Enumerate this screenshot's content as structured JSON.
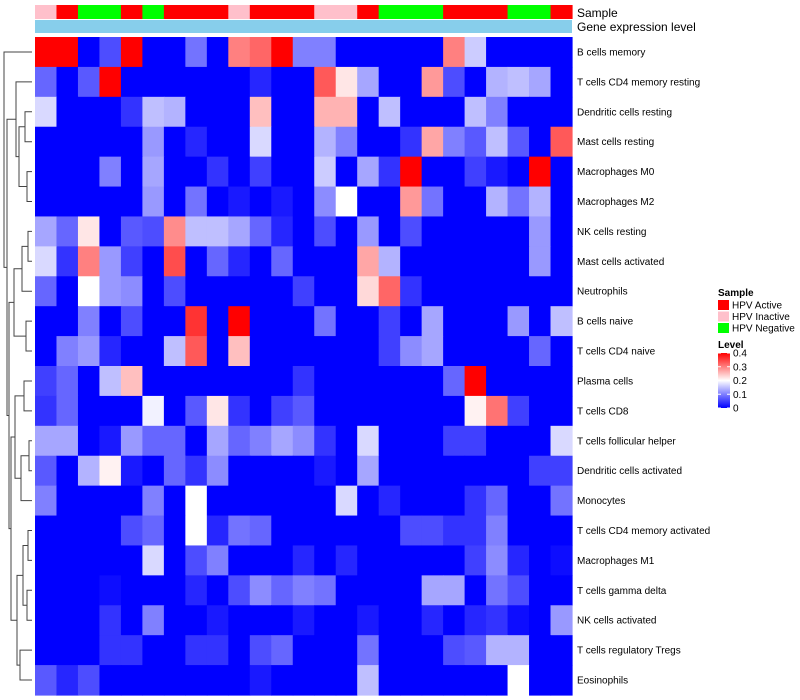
{
  "chart_data": {
    "type": "heatmap",
    "title": "",
    "annotation_labels": {
      "sample": "Sample",
      "gene_level": "Gene expression level"
    },
    "rows": [
      "B cells memory",
      "T cells CD4 memory resting",
      "Dendritic cells resting",
      "Mast cells resting",
      "Macrophages M0",
      "Macrophages M2",
      "NK cells resting",
      "Mast cells activated",
      "Neutrophils",
      "B cells naive",
      "T cells CD4 naive",
      "Plasma cells",
      "T cells CD8",
      "T cells follicular helper",
      "Dendritic cells activated",
      "Monocytes",
      "T cells CD4 memory activated",
      "Macrophages M1",
      "T cells gamma delta",
      "NK cells activated",
      "T cells regulatory  Tregs",
      "Eosinophils"
    ],
    "sample_groups": [
      "HPV Inactive",
      "HPV Active",
      "HPV Negative",
      "HPV Negative",
      "HPV Active",
      "HPV Negative",
      "HPV Active",
      "HPV Active",
      "HPV Active",
      "HPV Inactive",
      "HPV Active",
      "HPV Active",
      "HPV Active",
      "HPV Inactive",
      "HPV Inactive",
      "HPV Active",
      "HPV Negative",
      "HPV Negative",
      "HPV Negative",
      "HPV Active",
      "HPV Active",
      "HPV Active",
      "HPV Negative",
      "HPV Negative",
      "HPV Active"
    ],
    "values": [
      [
        0.4,
        0.4,
        0,
        0.06,
        0.4,
        0,
        0,
        0.09,
        0,
        0.3,
        0.32,
        0.4,
        0.1,
        0.1,
        0,
        0,
        0,
        0,
        0,
        0.3,
        0.16,
        0,
        0,
        0,
        0
      ],
      [
        0.08,
        0,
        0.07,
        0.4,
        0,
        0,
        0,
        0,
        0,
        0,
        0.03,
        0,
        0,
        0.33,
        0.22,
        0.13,
        0,
        0,
        0.28,
        0.06,
        0,
        0.14,
        0.15,
        0.13,
        0
      ],
      [
        0.17,
        0,
        0,
        0,
        0.04,
        0.15,
        0.14,
        0,
        0,
        0,
        0.25,
        0,
        0,
        0.26,
        0.26,
        0,
        0.15,
        0,
        0,
        0,
        0.15,
        0.1,
        0,
        0,
        0
      ],
      [
        0,
        0,
        0,
        0,
        0,
        0.12,
        0,
        0.03,
        0,
        0,
        0.17,
        0,
        0,
        0.14,
        0.1,
        0,
        0,
        0.04,
        0.27,
        0.1,
        0.07,
        0.15,
        0.07,
        0,
        0.33
      ],
      [
        0,
        0,
        0,
        0.1,
        0,
        0.13,
        0,
        0,
        0.04,
        0,
        0.05,
        0,
        0,
        0.16,
        0,
        0.13,
        0.04,
        0.4,
        0,
        0,
        0.05,
        0.02,
        0,
        0.4,
        0
      ],
      [
        0,
        0,
        0,
        0,
        0,
        0.12,
        0,
        0.09,
        0,
        0.02,
        0,
        0.02,
        0,
        0.11,
        0.2,
        0,
        0,
        0.28,
        0.09,
        0,
        0,
        0.14,
        0.09,
        0.14,
        0
      ],
      [
        0.13,
        0.08,
        0.22,
        0,
        0.07,
        0.06,
        0.29,
        0.15,
        0.15,
        0.13,
        0.08,
        0.03,
        0,
        0.06,
        0,
        0.12,
        0,
        0.06,
        0,
        0,
        0,
        0,
        0,
        0.12,
        0
      ],
      [
        0.17,
        0.04,
        0.3,
        0.12,
        0.05,
        0,
        0.34,
        0,
        0.08,
        0.03,
        0,
        0.08,
        0,
        0,
        0,
        0.27,
        0.14,
        0,
        0,
        0,
        0,
        0,
        0,
        0.12,
        0
      ],
      [
        0.08,
        0,
        0.2,
        0.12,
        0.11,
        0,
        0.06,
        0,
        0,
        0,
        0,
        0,
        0.05,
        0,
        0,
        0.23,
        0.32,
        0.04,
        0,
        0,
        0,
        0,
        0,
        0,
        0
      ],
      [
        0,
        0,
        0.1,
        0,
        0.06,
        0,
        0,
        0.36,
        0,
        0.4,
        0,
        0,
        0,
        0.09,
        0,
        0,
        0.05,
        0,
        0.13,
        0,
        0,
        0,
        0.12,
        0,
        0.15
      ],
      [
        0,
        0.1,
        0.12,
        0.03,
        0,
        0,
        0.15,
        0.33,
        0,
        0.25,
        0,
        0,
        0,
        0,
        0,
        0,
        0.05,
        0.11,
        0.13,
        0,
        0,
        0,
        0,
        0.08,
        0
      ],
      [
        0.05,
        0.08,
        0,
        0.15,
        0.25,
        0,
        0,
        0,
        0,
        0,
        0,
        0,
        0.04,
        0,
        0,
        0,
        0,
        0,
        0,
        0.08,
        0.4,
        0,
        0,
        0,
        0
      ],
      [
        0.04,
        0.08,
        0,
        0,
        0,
        0.19,
        0,
        0.07,
        0.22,
        0.04,
        0,
        0.05,
        0.07,
        0,
        0,
        0,
        0,
        0,
        0,
        0,
        0.21,
        0.31,
        0.05,
        0,
        0
      ],
      [
        0.13,
        0.13,
        0,
        0.02,
        0.12,
        0.08,
        0.08,
        0,
        0.13,
        0.08,
        0.1,
        0.13,
        0.11,
        0.04,
        0,
        0.17,
        0,
        0,
        0,
        0.05,
        0.05,
        0,
        0,
        0,
        0.17
      ],
      [
        0.07,
        0,
        0.14,
        0.21,
        0.02,
        0,
        0.08,
        0.04,
        0.11,
        0,
        0,
        0,
        0,
        0.02,
        0,
        0.13,
        0,
        0,
        0,
        0,
        0,
        0,
        0,
        0.05,
        0.05
      ],
      [
        0.1,
        0,
        0,
        0,
        0,
        0.1,
        0,
        0.2,
        0,
        0,
        0,
        0,
        0,
        0,
        0.17,
        0,
        0.03,
        0,
        0,
        0,
        0.04,
        0.08,
        0,
        0,
        0.09
      ],
      [
        0,
        0,
        0,
        0,
        0.06,
        0.08,
        0,
        0.2,
        0.03,
        0.09,
        0.08,
        0,
        0,
        0,
        0,
        0,
        0,
        0.06,
        0.06,
        0.04,
        0.04,
        0.1,
        0,
        0,
        0
      ],
      [
        0,
        0,
        0,
        0,
        0,
        0.17,
        0,
        0.06,
        0.1,
        0,
        0,
        0,
        0.03,
        0,
        0.03,
        0,
        0,
        0,
        0,
        0,
        0.05,
        0.11,
        0.03,
        0,
        0.01
      ],
      [
        0,
        0,
        0,
        0.01,
        0,
        0,
        0,
        0.03,
        0,
        0.06,
        0.11,
        0.08,
        0.1,
        0.09,
        0,
        0,
        0,
        0,
        0.13,
        0.13,
        0,
        0.09,
        0.06,
        0,
        0
      ],
      [
        0,
        0,
        0,
        0.04,
        0,
        0.1,
        0,
        0,
        0.02,
        0,
        0,
        0,
        0.02,
        0,
        0,
        0.02,
        0,
        0,
        0.03,
        0,
        0.03,
        0.04,
        0.01,
        0,
        0.12
      ],
      [
        0,
        0,
        0,
        0.04,
        0.04,
        0,
        0,
        0.04,
        0.04,
        0,
        0.06,
        0.08,
        0,
        0,
        0,
        0.09,
        0,
        0,
        0,
        0.06,
        0.07,
        0.14,
        0.14,
        0,
        0
      ],
      [
        0.07,
        0.03,
        0.06,
        0,
        0,
        0,
        0,
        0,
        0,
        0,
        0.02,
        0,
        0,
        0,
        0,
        0.15,
        0,
        0,
        0,
        0,
        0,
        0,
        0.2,
        0,
        0
      ]
    ],
    "color_scale": {
      "min": 0,
      "max": 0.4,
      "colors": [
        "#0000ff",
        "#ffffff",
        "#ff0000"
      ]
    },
    "group_colors": {
      "HPV Active": "#ff0000",
      "HPV Inactive": "#ffc0cb",
      "HPV Negative": "#00ff00"
    },
    "gene_level_color": "#87ceeb",
    "legend": {
      "sample_title": "Sample",
      "sample_entries": [
        "HPV Active",
        "HPV Inactive",
        "HPV Negative"
      ],
      "level_title": "Level",
      "level_ticks": [
        0.4,
        0.3,
        0.2,
        0.1,
        0
      ],
      "level_tick_labels": [
        "0.4",
        "0.3",
        "0.2",
        "0.1",
        "0"
      ]
    }
  }
}
